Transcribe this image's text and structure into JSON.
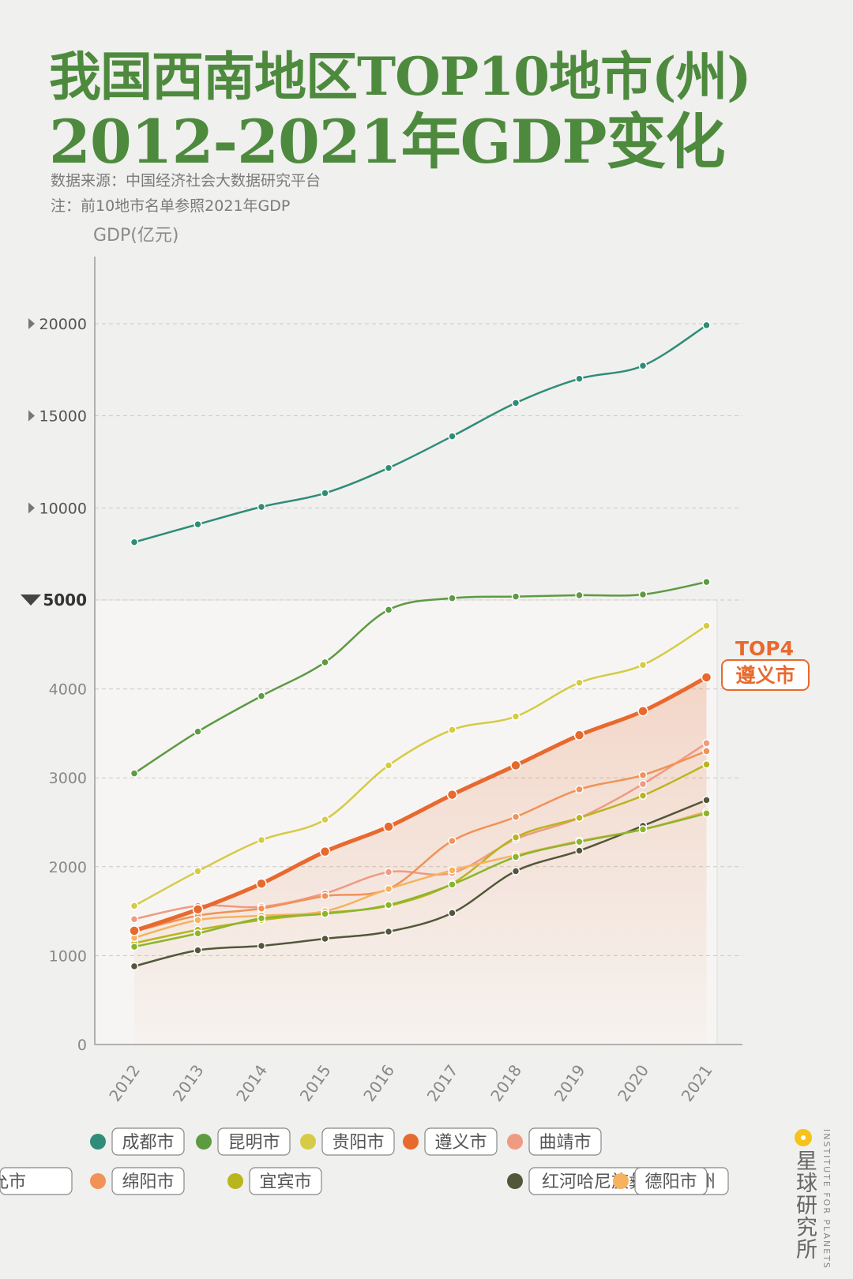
{
  "header": {
    "title_line1": "我国西南地区TOP10地市(州)",
    "title_line2": "2012-2021年GDP变化",
    "source": "数据来源：中国经济社会大数据研究平台",
    "note": "注：前10地市名单参照2021年GDP"
  },
  "brand": {
    "name_cn": "星球研究所",
    "name_en": "INSTITUTE FOR PLANETS",
    "color": "#f6c21c"
  },
  "chart_data": {
    "type": "line",
    "ylabel": "GDP(亿元)",
    "scale": "piecewise: 0–5000 expanded, 5000–20000 compressed",
    "ylim": [
      0,
      20000
    ],
    "y_ticks_lower": [
      0,
      1000,
      2000,
      3000,
      4000,
      5000
    ],
    "y_ticks_upper": [
      10000,
      15000,
      20000
    ],
    "x": [
      "2012",
      "2013",
      "2014",
      "2015",
      "2016",
      "2017",
      "2018",
      "2019",
      "2020",
      "2021"
    ],
    "highlight": {
      "badge": "TOP4",
      "name": "遵义市",
      "color": "#e8692e"
    },
    "series": [
      {
        "name": "成都市",
        "color": "#2f8c78",
        "values": [
          8139,
          9109,
          10057,
          10801,
          12170,
          13890,
          15699,
          17013,
          17717,
          19917
        ]
      },
      {
        "name": "昆明市",
        "color": "#5d9a42",
        "values": [
          3050,
          3520,
          3920,
          4300,
          4890,
          5100,
          5190,
          5260,
          5300,
          5980
        ]
      },
      {
        "name": "贵阳市",
        "color": "#d5cb46",
        "values": [
          1560,
          1950,
          2300,
          2530,
          3140,
          3540,
          3690,
          4070,
          4270,
          4710
        ]
      },
      {
        "name": "遵义市",
        "color": "#e8692e",
        "values": [
          1280,
          1520,
          1810,
          2170,
          2450,
          2810,
          3140,
          3480,
          3750,
          4130
        ]
      },
      {
        "name": "曲靖市",
        "color": "#ef9a82",
        "values": [
          1410,
          1560,
          1550,
          1700,
          1940,
          1930,
          2310,
          2550,
          2930,
          3390
        ]
      },
      {
        "name": "绵阳市",
        "color": "#f19257",
        "values": [
          1270,
          1450,
          1530,
          1670,
          1750,
          2290,
          2560,
          2870,
          3030,
          3300
        ]
      },
      {
        "name": "宜宾市",
        "color": "#b9b51c",
        "values": [
          1140,
          1290,
          1400,
          1480,
          1560,
          1810,
          2330,
          2550,
          2800,
          3150
        ]
      },
      {
        "name": "红河哈尼族彝族自治州",
        "color": "#52573a",
        "values": [
          880,
          1060,
          1110,
          1190,
          1270,
          1480,
          1950,
          2180,
          2460,
          2750
        ]
      },
      {
        "name": "德阳市",
        "color": "#f6b25f",
        "values": [
          1200,
          1400,
          1450,
          1500,
          1750,
          1960,
          2130,
          2290,
          2420,
          2620
        ]
      },
      {
        "name": "南允市",
        "color": "#8cb52c",
        "values": [
          1100,
          1250,
          1420,
          1470,
          1570,
          1800,
          2110,
          2280,
          2420,
          2600
        ]
      }
    ],
    "legend": "bottom",
    "grid": true
  }
}
